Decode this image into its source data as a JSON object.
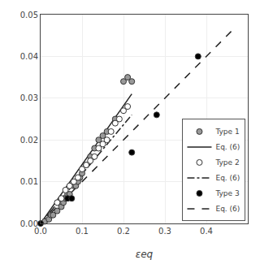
{
  "chart_data": {
    "type": "scatter",
    "xlabel": "εeq",
    "xlim": [
      0,
      0.5
    ],
    "ylim": [
      0,
      0.05
    ],
    "xticks": [
      {
        "value": 0,
        "label": "0.0"
      },
      0.1,
      0.2,
      0.3,
      0.4
    ],
    "yticks": [
      {
        "value": 0,
        "label": "0.00"
      },
      0.01,
      0.02,
      0.03,
      0.04,
      0.05
    ],
    "grid": true,
    "legend": "lower right",
    "series": [
      {
        "name": "Type 1",
        "type": "scatter",
        "marker": "circle",
        "color": "#999999",
        "x": [
          0.01,
          0.02,
          0.025,
          0.03,
          0.04,
          0.05,
          0.055,
          0.06,
          0.065,
          0.07,
          0.08,
          0.085,
          0.09,
          0.095,
          0.1,
          0.11,
          0.12,
          0.13,
          0.14,
          0.15,
          0.16,
          0.18,
          0.2,
          0.21,
          0.22
        ],
        "values": [
          0.0005,
          0.001,
          0.002,
          0.002,
          0.003,
          0.004,
          0.005,
          0.006,
          0.007,
          0.007,
          0.009,
          0.009,
          0.01,
          0.011,
          0.012,
          0.014,
          0.016,
          0.018,
          0.02,
          0.021,
          0.022,
          0.025,
          0.034,
          0.035,
          0.034
        ]
      },
      {
        "name": "Eq. (6)",
        "type": "line",
        "line_style": "solid",
        "color": "#222222",
        "x": [
          0,
          0.22
        ],
        "values": [
          0,
          0.031
        ]
      },
      {
        "name": "Type 2",
        "type": "scatter",
        "marker": "circle",
        "color": "#ffffff",
        "x": [
          0.04,
          0.05,
          0.06,
          0.07,
          0.08,
          0.09,
          0.1,
          0.11,
          0.12,
          0.13,
          0.14,
          0.15,
          0.16,
          0.17,
          0.18,
          0.19,
          0.2,
          0.21
        ],
        "values": [
          0.005,
          0.006,
          0.008,
          0.009,
          0.01,
          0.011,
          0.013,
          0.014,
          0.015,
          0.016,
          0.018,
          0.019,
          0.02,
          0.022,
          0.024,
          0.025,
          0.027,
          0.028
        ]
      },
      {
        "name": "Eq. (6)",
        "type": "line",
        "line_style": "dashdot",
        "color": "#222222",
        "x": [
          0,
          0.22
        ],
        "values": [
          0,
          0.026
        ]
      },
      {
        "name": "Type 3",
        "type": "scatter",
        "marker": "circle",
        "color": "#000000",
        "x": [
          0.0,
          0.065,
          0.075,
          0.22,
          0.28,
          0.38
        ],
        "values": [
          0.0,
          0.006,
          0.006,
          0.017,
          0.026,
          0.04
        ]
      },
      {
        "name": "Eq. (6)",
        "type": "line",
        "line_style": "dash",
        "color": "#222222",
        "x": [
          0,
          0.46
        ],
        "values": [
          0,
          0.046
        ]
      }
    ]
  }
}
